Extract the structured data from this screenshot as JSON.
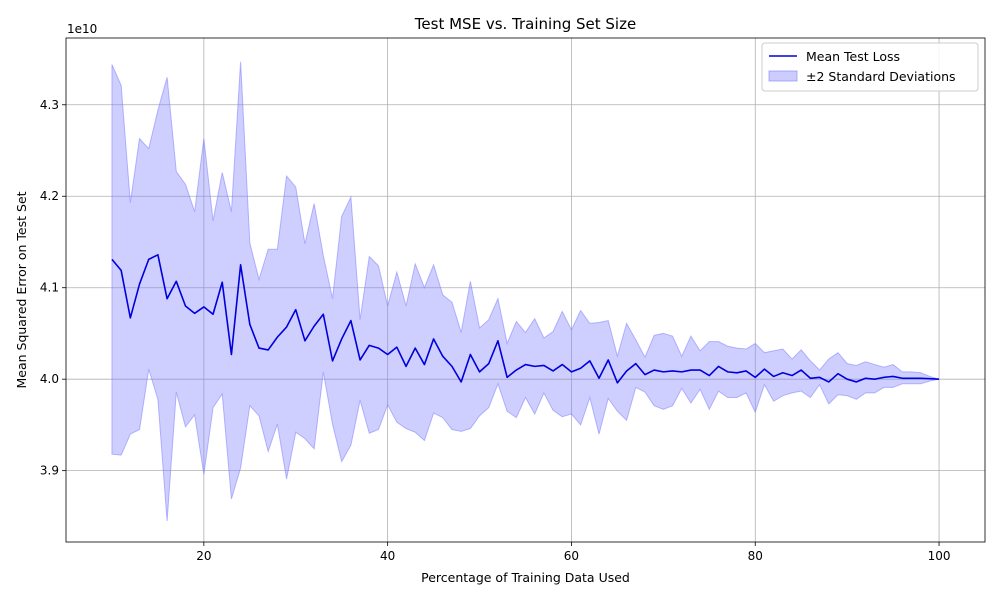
{
  "chart_data": {
    "type": "line",
    "title": "Test MSE vs. Training Set Size",
    "xlabel": "Percentage of Training Data Used",
    "ylabel": "Mean Squared Error on Test Set",
    "y_offset_label": "1e10",
    "xlim": [
      5,
      105
    ],
    "ylim": [
      3.822,
      4.373
    ],
    "x_ticks": [
      20,
      40,
      60,
      80,
      100
    ],
    "x_tick_labels": [
      "20",
      "40",
      "60",
      "80",
      "100"
    ],
    "y_ticks": [
      3.9,
      4.0,
      4.1,
      4.2,
      4.3
    ],
    "y_tick_labels": [
      "3.9",
      "4.0",
      "4.1",
      "4.2",
      "4.3"
    ],
    "grid": true,
    "legend_position": "top-right",
    "x": [
      10,
      11,
      12,
      13,
      14,
      15,
      16,
      17,
      18,
      19,
      20,
      21,
      22,
      23,
      24,
      25,
      26,
      27,
      28,
      29,
      30,
      31,
      32,
      33,
      34,
      35,
      36,
      37,
      38,
      39,
      40,
      41,
      42,
      43,
      44,
      45,
      46,
      47,
      48,
      49,
      50,
      51,
      52,
      53,
      54,
      55,
      56,
      57,
      58,
      59,
      60,
      61,
      62,
      63,
      64,
      65,
      66,
      67,
      68,
      69,
      70,
      71,
      72,
      73,
      74,
      75,
      76,
      77,
      78,
      79,
      80,
      81,
      82,
      83,
      84,
      85,
      86,
      87,
      88,
      89,
      90,
      91,
      92,
      93,
      94,
      95,
      96,
      97,
      98,
      99,
      100
    ],
    "series": [
      {
        "name": "Mean Test Loss",
        "color": "#0000dd",
        "values": [
          4.131,
          4.119,
          4.067,
          4.104,
          4.131,
          4.136,
          4.088,
          4.107,
          4.08,
          4.072,
          4.079,
          4.071,
          4.106,
          4.027,
          4.125,
          4.06,
          4.034,
          4.032,
          4.046,
          4.057,
          4.076,
          4.042,
          4.058,
          4.071,
          4.02,
          4.044,
          4.064,
          4.021,
          4.037,
          4.034,
          4.027,
          4.035,
          4.014,
          4.034,
          4.016,
          4.044,
          4.025,
          4.014,
          3.997,
          4.027,
          4.008,
          4.017,
          4.042,
          4.002,
          4.01,
          4.016,
          4.014,
          4.015,
          4.009,
          4.016,
          4.008,
          4.012,
          4.02,
          4.001,
          4.021,
          3.996,
          4.009,
          4.017,
          4.005,
          4.01,
          4.008,
          4.009,
          4.008,
          4.01,
          4.01,
          4.004,
          4.014,
          4.008,
          4.007,
          4.009,
          4.002,
          4.011,
          4.003,
          4.007,
          4.004,
          4.01,
          4.001,
          4.002,
          3.997,
          4.006,
          4.0,
          3.997,
          4.001,
          4.0,
          4.002,
          4.003,
          4.001,
          4.001,
          4.001,
          4.0005,
          4.0
        ]
      },
      {
        "name": "±2 Standard Deviations",
        "color": "#8080ff",
        "upper": [
          4.344,
          4.321,
          4.193,
          4.263,
          4.252,
          4.294,
          4.33,
          4.227,
          4.213,
          4.183,
          4.263,
          4.173,
          4.226,
          4.183,
          4.347,
          4.149,
          4.109,
          4.142,
          4.142,
          4.222,
          4.21,
          4.148,
          4.192,
          4.135,
          4.088,
          4.178,
          4.199,
          4.065,
          4.134,
          4.124,
          4.08,
          4.117,
          4.08,
          4.126,
          4.1,
          4.125,
          4.092,
          4.084,
          4.051,
          4.107,
          4.056,
          4.065,
          4.088,
          4.039,
          4.063,
          4.051,
          4.066,
          4.045,
          4.052,
          4.074,
          4.054,
          4.075,
          4.061,
          4.062,
          4.064,
          4.025,
          4.061,
          4.043,
          4.024,
          4.048,
          4.05,
          4.047,
          4.025,
          4.047,
          4.031,
          4.041,
          4.041,
          4.036,
          4.034,
          4.033,
          4.039,
          4.029,
          4.031,
          4.033,
          4.022,
          4.032,
          4.02,
          4.01,
          4.022,
          4.029,
          4.017,
          4.015,
          4.019,
          4.016,
          4.013,
          4.016,
          4.008,
          4.008,
          4.007,
          4.003,
          4.0
        ],
        "lower": [
          3.918,
          3.917,
          3.94,
          3.945,
          4.011,
          3.978,
          3.845,
          3.986,
          3.948,
          3.961,
          3.896,
          3.969,
          3.984,
          3.869,
          3.903,
          3.971,
          3.96,
          3.921,
          3.951,
          3.891,
          3.942,
          3.935,
          3.924,
          4.008,
          3.951,
          3.91,
          3.928,
          3.977,
          3.941,
          3.945,
          3.972,
          3.953,
          3.946,
          3.942,
          3.933,
          3.963,
          3.958,
          3.945,
          3.943,
          3.946,
          3.96,
          3.969,
          3.995,
          3.965,
          3.958,
          3.98,
          3.962,
          3.985,
          3.966,
          3.959,
          3.962,
          3.95,
          3.98,
          3.94,
          3.979,
          3.965,
          3.955,
          3.991,
          3.986,
          3.971,
          3.967,
          3.971,
          3.99,
          3.974,
          3.989,
          3.967,
          3.987,
          3.98,
          3.98,
          3.985,
          3.964,
          3.994,
          3.976,
          3.982,
          3.985,
          3.987,
          3.98,
          3.994,
          3.973,
          3.983,
          3.982,
          3.978,
          3.985,
          3.985,
          3.991,
          3.991,
          3.995,
          3.995,
          3.995,
          3.998,
          4.0
        ]
      }
    ]
  }
}
